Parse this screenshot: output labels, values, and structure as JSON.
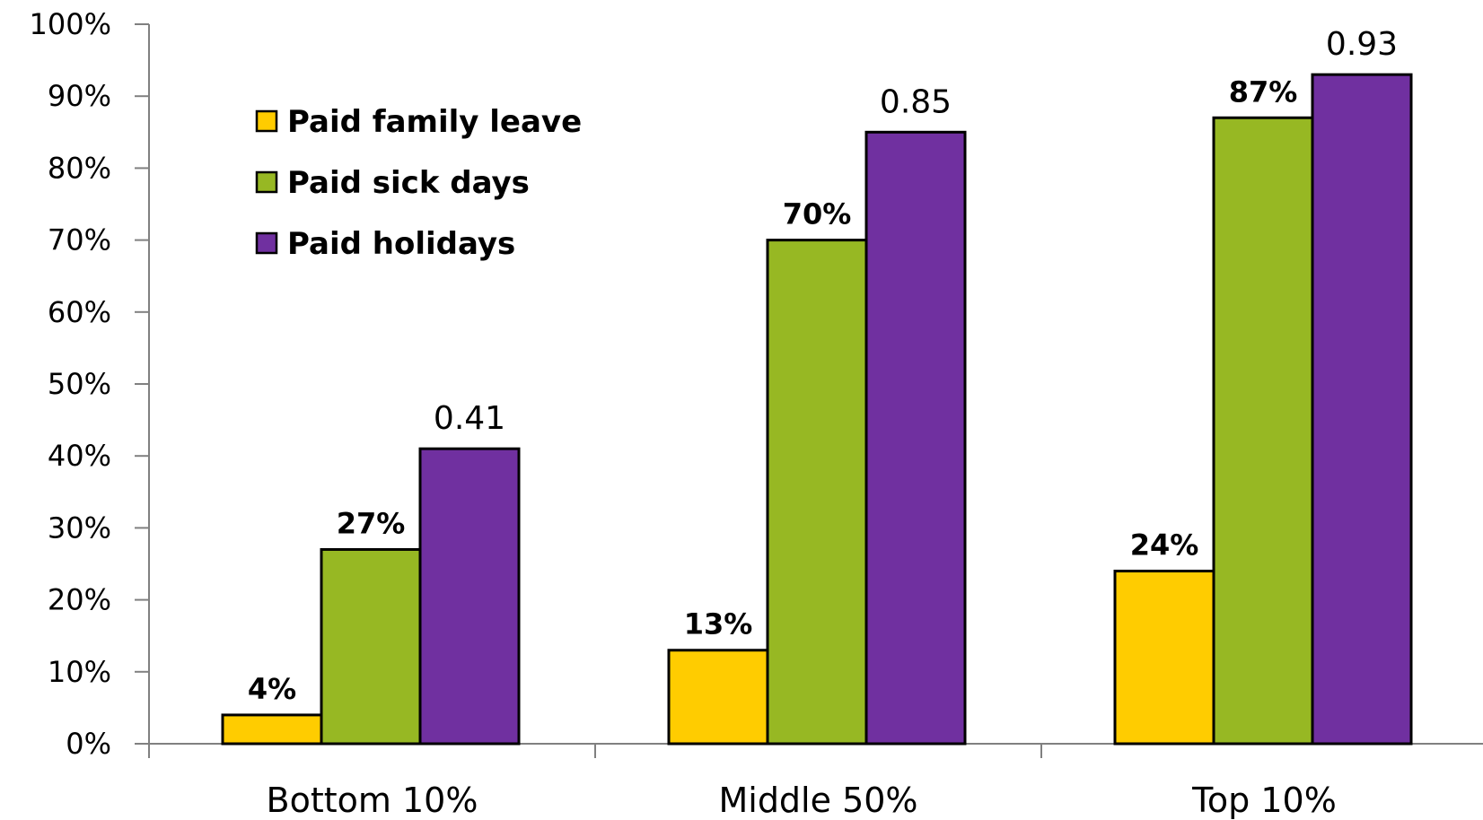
{
  "chart_data": {
    "type": "bar",
    "categories": [
      "Bottom 10%",
      "Middle 50%",
      "Top 10%"
    ],
    "series": [
      {
        "name": "Paid family leave",
        "values": [
          0.04,
          0.13,
          0.24
        ],
        "data_labels": [
          "4%",
          "13%",
          "24%"
        ],
        "label_style": "bold",
        "color": "#FFCC00"
      },
      {
        "name": "Paid sick days",
        "values": [
          0.27,
          0.7,
          0.87
        ],
        "data_labels": [
          "27%",
          "70%",
          "87%"
        ],
        "label_style": "bold",
        "color": "#97B823"
      },
      {
        "name": "Paid holidays",
        "values": [
          0.41,
          0.85,
          0.93
        ],
        "data_labels": [
          "0.41",
          "0.85",
          "0.93"
        ],
        "label_style": "plain",
        "color": "#7030A0"
      }
    ],
    "ylim": [
      0,
      1
    ],
    "y_ticks": [
      "0%",
      "10%",
      "20%",
      "30%",
      "40%",
      "50%",
      "60%",
      "70%",
      "80%",
      "90%",
      "100%"
    ],
    "grid": false,
    "legend_position": "top-left"
  }
}
